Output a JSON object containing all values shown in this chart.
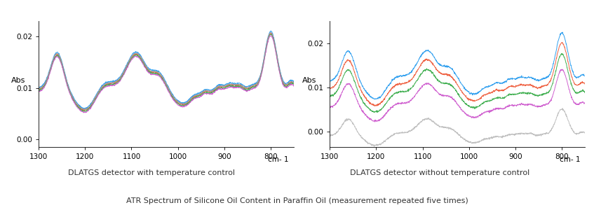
{
  "title": "ATR Spectrum of Silicone Oil Content in Paraffin Oil (measurement repeated five times)",
  "left_subtitle": "DLATGS detector with temperature control",
  "right_subtitle": "DLATGS detector without temperature control",
  "xlabel": "cm- 1",
  "ylabel": "Abs",
  "xlim": [
    1300,
    750
  ],
  "ylim_left": [
    -0.0015,
    0.023
  ],
  "ylim_right": [
    -0.0035,
    0.025
  ],
  "xticks": [
    1300,
    1200,
    1100,
    1000,
    900,
    800
  ],
  "yticks_left": [
    0.0,
    0.01,
    0.02
  ],
  "yticks_right": [
    0.0,
    0.01,
    0.02
  ],
  "colors_left": [
    "#2299ee",
    "#ee5533",
    "#33aa44",
    "#cc55cc",
    "#999999"
  ],
  "colors_right": [
    "#2299ee",
    "#ee5533",
    "#33aa44",
    "#cc55cc",
    "#bbbbbb"
  ],
  "linewidth": 0.7,
  "background": "#ffffff"
}
